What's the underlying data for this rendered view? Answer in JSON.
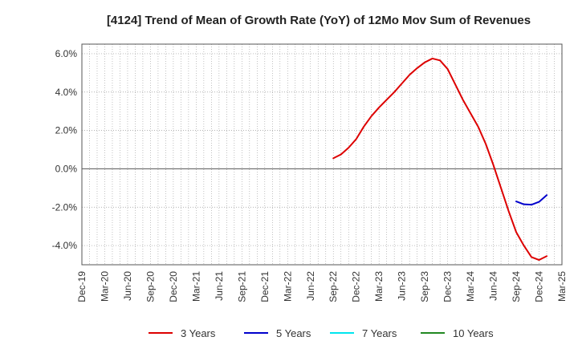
{
  "chart_data": {
    "type": "line",
    "title": "[4124]  Trend of Mean of Growth Rate (YoY) of 12Mo Mov Sum of Revenues",
    "xlabel": "",
    "ylabel": "",
    "ylim": [
      -5.0,
      6.5
    ],
    "y_ticks": [
      6.0,
      4.0,
      2.0,
      0.0,
      -2.0,
      -4.0
    ],
    "y_tick_labels": [
      "6.0%",
      "4.0%",
      "2.0%",
      "0.0%",
      "-2.0%",
      "-4.0%"
    ],
    "x_tick_labels": [
      "Dec-19",
      "Mar-20",
      "Jun-20",
      "Sep-20",
      "Dec-20",
      "Mar-21",
      "Jun-21",
      "Sep-21",
      "Dec-21",
      "Mar-22",
      "Jun-22",
      "Sep-22",
      "Dec-22",
      "Mar-23",
      "Jun-23",
      "Sep-23",
      "Dec-23",
      "Mar-24",
      "Jun-24",
      "Sep-24",
      "Dec-24",
      "Mar-25"
    ],
    "grid": true,
    "legend_position": "bottom",
    "series": [
      {
        "name": "3 Years",
        "color": "#dd0000",
        "start_index": 33,
        "values": [
          0.55,
          0.75,
          1.1,
          1.55,
          2.2,
          2.75,
          3.2,
          3.6,
          4.0,
          4.45,
          4.9,
          5.25,
          5.55,
          5.75,
          5.65,
          5.2,
          4.4,
          3.6,
          2.9,
          2.2,
          1.3,
          0.2,
          -1.0,
          -2.2,
          -3.3,
          -4.0,
          -4.6,
          -4.75,
          -4.55
        ]
      },
      {
        "name": "5 Years",
        "color": "#0000cc",
        "start_index": 57,
        "values": [
          -1.7,
          -1.85,
          -1.87,
          -1.72,
          -1.37
        ]
      },
      {
        "name": "7 Years",
        "color": "#00e5ee",
        "start_index": 0,
        "values": []
      },
      {
        "name": "10 Years",
        "color": "#228822",
        "start_index": 0,
        "values": []
      }
    ]
  }
}
